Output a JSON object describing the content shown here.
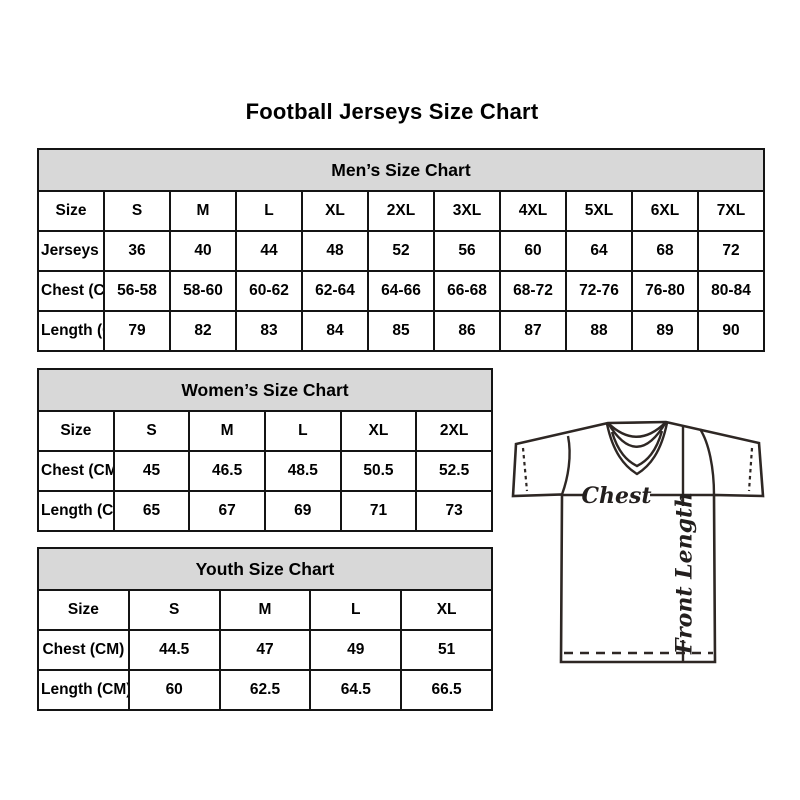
{
  "page": {
    "title": "Football Jerseys Size Chart"
  },
  "tables": [
    {
      "id": "mens",
      "header": "Men’s Size Chart",
      "rows": [
        {
          "label": "Size",
          "values": [
            "S",
            "M",
            "L",
            "XL",
            "2XL",
            "3XL",
            "4XL",
            "5XL",
            "6XL",
            "7XL"
          ]
        },
        {
          "label": "Jerseys Size",
          "values": [
            "36",
            "40",
            "44",
            "48",
            "52",
            "56",
            "60",
            "64",
            "68",
            "72"
          ]
        },
        {
          "label": "Chest (CM)",
          "values": [
            "56-58",
            "58-60",
            "60-62",
            "62-64",
            "64-66",
            "66-68",
            "68-72",
            "72-76",
            "76-80",
            "80-84"
          ]
        },
        {
          "label": "Length (CM)",
          "values": [
            "79",
            "82",
            "83",
            "84",
            "85",
            "86",
            "87",
            "88",
            "89",
            "90"
          ]
        }
      ]
    },
    {
      "id": "womens",
      "header": "Women’s Size Chart",
      "rows": [
        {
          "label": "Size",
          "values": [
            "S",
            "M",
            "L",
            "XL",
            "2XL"
          ]
        },
        {
          "label": "Chest (CM)",
          "values": [
            "45",
            "46.5",
            "48.5",
            "50.5",
            "52.5"
          ]
        },
        {
          "label": "Length (CM)",
          "values": [
            "65",
            "67",
            "69",
            "71",
            "73"
          ]
        }
      ]
    },
    {
      "id": "youth",
      "header": "Youth Size Chart",
      "rows": [
        {
          "label": "Size",
          "values": [
            "S",
            "M",
            "L",
            "XL"
          ]
        },
        {
          "label": "Chest (CM)",
          "values": [
            "44.5",
            "47",
            "49",
            "51"
          ]
        },
        {
          "label": "Length (CM)",
          "values": [
            "60",
            "62.5",
            "64.5",
            "66.5"
          ]
        }
      ]
    }
  ],
  "diagram": {
    "chest_label": "Chest",
    "front_length_label": "Front Length"
  },
  "colors": {
    "table_header_bg": "#d8d8d8",
    "table_border": "#141414",
    "text": "#000000",
    "diagram_stroke": "#2e2724"
  }
}
